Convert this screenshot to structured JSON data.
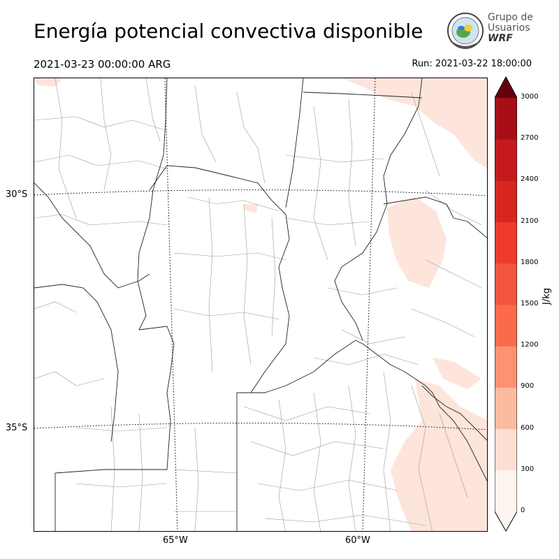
{
  "title": "Energía potencial convectiva disponible",
  "valid_time": "2021-03-23 00:00:00 ARG",
  "run_time": "Run: 2021-03-22 18:00:00",
  "logo": {
    "line1": "Grupo de",
    "line2": "Usuarios",
    "line3": "WRF"
  },
  "map": {
    "lat_labels": [
      "30°S",
      "35°S"
    ],
    "lon_labels": [
      "65°W",
      "60°W"
    ]
  },
  "colorbar": {
    "units": "J/kg",
    "ticks": [
      "0",
      "300",
      "600",
      "900",
      "1200",
      "1500",
      "1800",
      "2100",
      "2400",
      "2700",
      "3000"
    ],
    "colors": [
      "#fff5f0",
      "#fee0d2",
      "#fcbba1",
      "#fc9272",
      "#fb6a4a",
      "#f4553d",
      "#ef3b2c",
      "#d7261e",
      "#c31a1d",
      "#a50f15",
      "#7a0510",
      "#67000d"
    ],
    "extend": "both"
  }
}
